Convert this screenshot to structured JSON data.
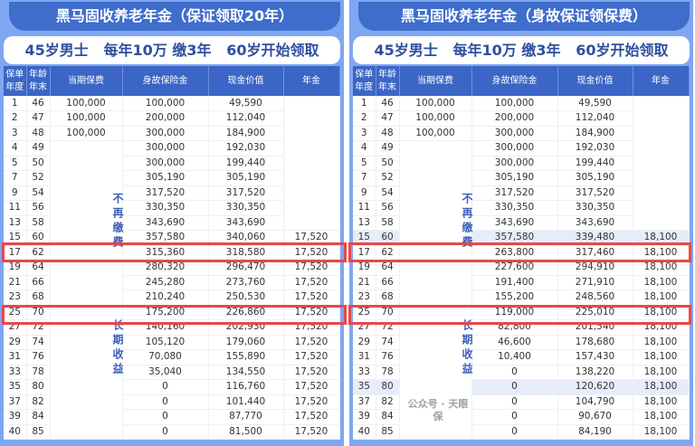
{
  "subtitle": "45岁男士   每年10万 缴3年   60岁开始领取",
  "headers": [
    "保单年度",
    "年龄年末",
    "当期保费",
    "身故保险金",
    "现金价值",
    "年金"
  ],
  "premium_note_1": "不再缴费",
  "premium_note_2": "长期收益",
  "watermark": "公众号 · 天眼保",
  "left": {
    "title": "黑马固收养老年金（保证领取20年）",
    "rows": [
      [
        "1",
        "46",
        "100,000",
        "100,000",
        "49,590",
        ""
      ],
      [
        "2",
        "47",
        "100,000",
        "200,000",
        "112,040",
        ""
      ],
      [
        "3",
        "48",
        "100,000",
        "300,000",
        "184,900",
        ""
      ],
      [
        "4",
        "49",
        "",
        "300,000",
        "192,030",
        ""
      ],
      [
        "5",
        "50",
        "",
        "300,000",
        "199,440",
        ""
      ],
      [
        "7",
        "52",
        "",
        "305,190",
        "305,190",
        ""
      ],
      [
        "9",
        "54",
        "",
        "317,520",
        "317,520",
        ""
      ],
      [
        "11",
        "56",
        "",
        "330,350",
        "330,350",
        ""
      ],
      [
        "13",
        "58",
        "",
        "343,690",
        "343,690",
        ""
      ],
      [
        "15",
        "60",
        "",
        "357,580",
        "340,060",
        "17,520"
      ],
      [
        "17",
        "62",
        "",
        "315,360",
        "318,580",
        "17,520"
      ],
      [
        "19",
        "64",
        "",
        "280,320",
        "296,470",
        "17,520"
      ],
      [
        "21",
        "66",
        "",
        "245,280",
        "273,760",
        "17,520"
      ],
      [
        "23",
        "68",
        "",
        "210,240",
        "250,530",
        "17,520"
      ],
      [
        "25",
        "70",
        "",
        "175,200",
        "226,860",
        "17,520"
      ],
      [
        "27",
        "72",
        "",
        "140,160",
        "202,930",
        "17,520"
      ],
      [
        "29",
        "74",
        "",
        "105,120",
        "179,060",
        "17,520"
      ],
      [
        "31",
        "76",
        "",
        "70,080",
        "155,890",
        "17,520"
      ],
      [
        "33",
        "78",
        "",
        "35,040",
        "134,550",
        "17,520"
      ],
      [
        "35",
        "80",
        "",
        "0",
        "116,760",
        "17,520"
      ],
      [
        "37",
        "82",
        "",
        "0",
        "101,440",
        "17,520"
      ],
      [
        "39",
        "84",
        "",
        "0",
        "87,770",
        "17,520"
      ],
      [
        "40",
        "85",
        "",
        "0",
        "81,500",
        "17,520"
      ]
    ]
  },
  "right": {
    "title": "黑马固收养老年金（身故保证领保费）",
    "rows": [
      [
        "1",
        "46",
        "100,000",
        "100,000",
        "49,590",
        ""
      ],
      [
        "2",
        "47",
        "100,000",
        "200,000",
        "112,040",
        ""
      ],
      [
        "3",
        "48",
        "100,000",
        "300,000",
        "184,900",
        ""
      ],
      [
        "4",
        "49",
        "",
        "300,000",
        "192,030",
        ""
      ],
      [
        "5",
        "50",
        "",
        "300,000",
        "199,440",
        ""
      ],
      [
        "7",
        "52",
        "",
        "305,190",
        "305,190",
        ""
      ],
      [
        "9",
        "54",
        "",
        "317,520",
        "317,520",
        ""
      ],
      [
        "11",
        "56",
        "",
        "330,350",
        "330,350",
        ""
      ],
      [
        "13",
        "58",
        "",
        "343,690",
        "343,690",
        ""
      ],
      [
        "15",
        "60",
        "",
        "357,580",
        "339,480",
        "18,100"
      ],
      [
        "17",
        "62",
        "",
        "263,800",
        "317,460",
        "18,100"
      ],
      [
        "19",
        "64",
        "",
        "227,600",
        "294,910",
        "18,100"
      ],
      [
        "21",
        "66",
        "",
        "191,400",
        "271,910",
        "18,100"
      ],
      [
        "23",
        "68",
        "",
        "155,200",
        "248,560",
        "18,100"
      ],
      [
        "25",
        "70",
        "",
        "119,000",
        "225,010",
        "18,100"
      ],
      [
        "27",
        "72",
        "",
        "82,800",
        "201,540",
        "18,100"
      ],
      [
        "29",
        "74",
        "",
        "46,600",
        "178,680",
        "18,100"
      ],
      [
        "31",
        "76",
        "",
        "10,400",
        "157,430",
        "18,100"
      ],
      [
        "33",
        "78",
        "",
        "0",
        "138,220",
        "18,100"
      ],
      [
        "35",
        "80",
        "",
        "0",
        "120,620",
        "18,100"
      ],
      [
        "37",
        "82",
        "",
        "0",
        "104,790",
        "18,100"
      ],
      [
        "39",
        "84",
        "",
        "0",
        "90,670",
        "18,100"
      ],
      [
        "40",
        "85",
        "",
        "0",
        "84,190",
        "18,100"
      ]
    ]
  }
}
